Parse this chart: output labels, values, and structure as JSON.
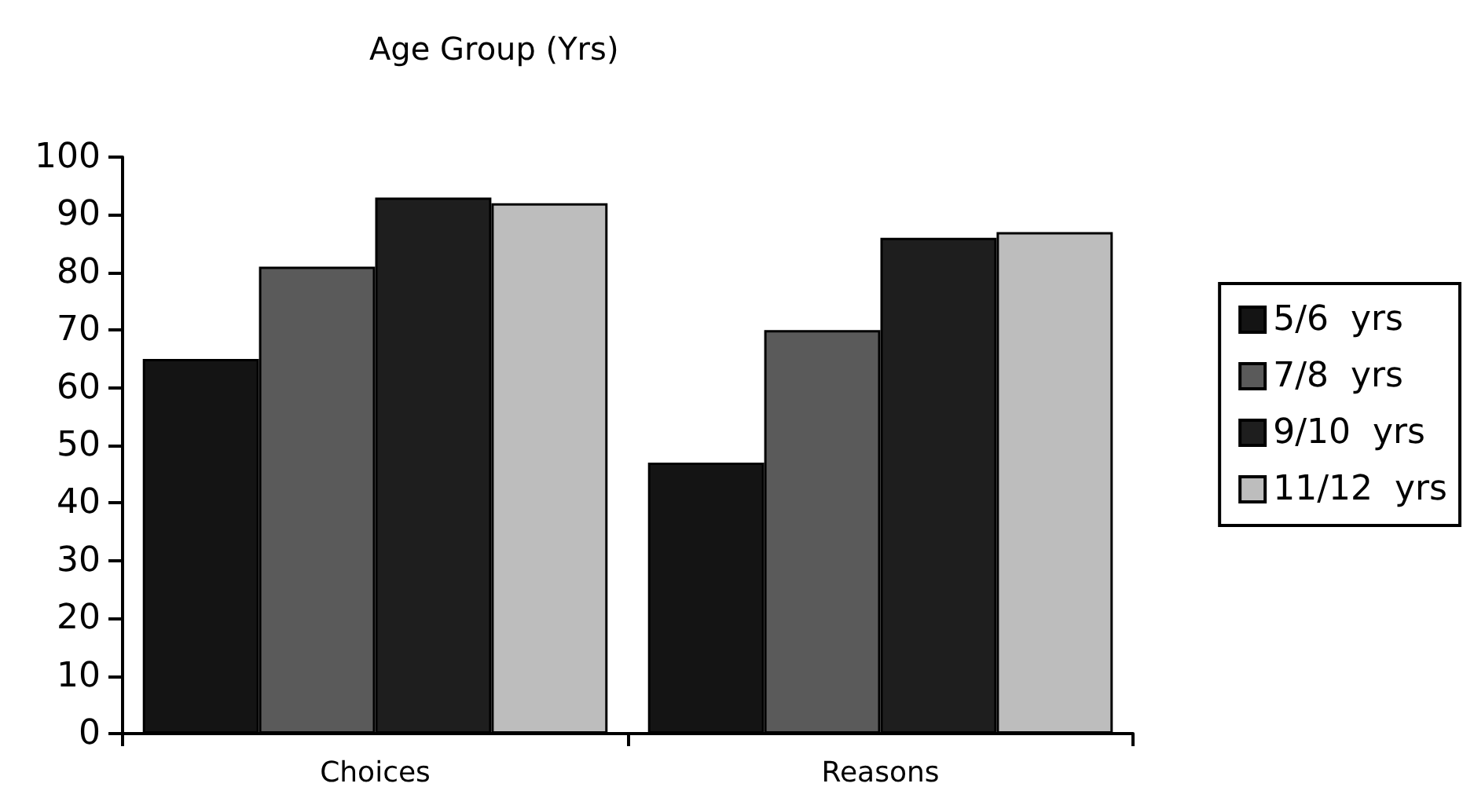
{
  "chart_data": {
    "type": "bar",
    "title": "Age Group (Yrs)",
    "categories": [
      "Choices",
      "Reasons"
    ],
    "series": [
      {
        "name": "5/6  yrs",
        "color": "#141414",
        "values": [
          65,
          47
        ]
      },
      {
        "name": "7/8  yrs",
        "color": "#5a5a5a",
        "values": [
          81,
          70
        ]
      },
      {
        "name": "9/10  yrs",
        "color": "#1e1e1e",
        "values": [
          93,
          86
        ]
      },
      {
        "name": "11/12  yrs",
        "color": "#bdbdbd",
        "values": [
          92,
          87
        ]
      }
    ],
    "ylim": [
      0,
      100
    ],
    "yticks": [
      0,
      10,
      20,
      30,
      40,
      50,
      60,
      70,
      80,
      90,
      100
    ],
    "grid": false,
    "legend": "right"
  }
}
